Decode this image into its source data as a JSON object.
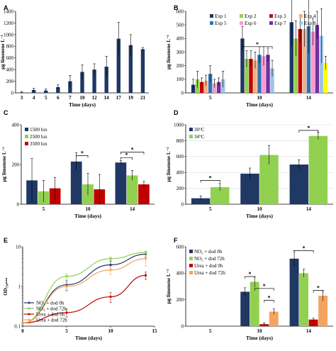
{
  "figure": {
    "background": "#ffffff",
    "axis_color": "#000000",
    "grid_color": "#d9d9d9"
  },
  "chart_data": [
    {
      "panel": "A",
      "type": "bar",
      "categories": [
        "3",
        "4",
        "5",
        "6",
        "7",
        "10",
        "12",
        "14",
        "17",
        "19",
        "21"
      ],
      "series": [
        {
          "color": "#1f3864",
          "values": [
            10,
            50,
            40,
            100,
            200,
            360,
            400,
            450,
            930,
            820,
            750
          ],
          "errors": [
            15,
            30,
            30,
            40,
            100,
            120,
            100,
            180,
            280,
            180,
            30
          ]
        }
      ],
      "xlabel": "Time (days)",
      "ylabel": "µg limonene L⁻¹",
      "ylim": [
        0,
        1400
      ],
      "yticks": [
        0,
        200,
        400,
        600,
        800,
        1000,
        1200,
        1400
      ],
      "ytick_labels": [
        "0",
        "200",
        "400",
        "600",
        "800",
        "1000",
        "1200",
        "1400"
      ],
      "grid": false,
      "bar_width": 0.18
    },
    {
      "panel": "B",
      "type": "bar",
      "categories": [
        "5",
        "10",
        "14"
      ],
      "series": [
        {
          "name": "Exp 1",
          "color": "#1f3864",
          "values": [
            60,
            400,
            520
          ],
          "errors": [
            40,
            90,
            180
          ]
        },
        {
          "name": "Exp 2",
          "color": "#92d050",
          "values": [
            100,
            250,
            400
          ],
          "errors": [
            60,
            60,
            130
          ]
        },
        {
          "name": "Exp 3",
          "color": "#c00000",
          "values": [
            80,
            250,
            470
          ],
          "errors": [
            30,
            60,
            100
          ]
        },
        {
          "name": "Exp 4",
          "color": "#f4b183",
          "values": [
            90,
            240,
            470
          ],
          "errors": [
            40,
            60,
            130
          ]
        },
        {
          "name": "Exp 5",
          "color": "#2e75b6",
          "values": [
            140,
            280,
            490
          ],
          "errors": [
            60,
            60,
            200
          ]
        },
        {
          "name": "Exp 6",
          "color": "#ff99cc",
          "values": [
            70,
            270,
            450
          ],
          "errors": [
            30,
            70,
            100
          ]
        },
        {
          "name": "Exp 7",
          "color": "#7030a0",
          "values": [
            80,
            280,
            500
          ],
          "errors": [
            30,
            50,
            100
          ]
        },
        {
          "name": "Exp 8",
          "color": "#9dc3e6",
          "values": [
            100,
            180,
            420
          ],
          "errors": [
            60,
            60,
            200
          ]
        }
      ],
      "extra_bar": {
        "color": "#ffff00",
        "values": [
          0,
          0,
          220
        ],
        "errors": [
          0,
          0,
          50
        ]
      },
      "significance": [
        {
          "from": "10",
          "level": 340,
          "label": "*"
        }
      ],
      "xlabel": "Time (days)",
      "ylabel": "µg limonene L⁻¹",
      "ylim": [
        0,
        600
      ],
      "yticks": [
        0,
        100,
        200,
        300,
        400,
        500,
        600
      ],
      "ytick_labels": [
        "0",
        "100",
        "200",
        "300",
        "400",
        "500",
        "600"
      ],
      "legend": "top",
      "grid": false
    },
    {
      "panel": "C",
      "type": "bar",
      "categories": [
        "5",
        "10",
        "14"
      ],
      "series": [
        {
          "name": "1500 lux",
          "color": "#1f3864",
          "values": [
            120,
            215,
            210
          ],
          "errors": [
            110,
            45,
            10
          ]
        },
        {
          "name": "2500 lux",
          "color": "#92d050",
          "values": [
            65,
            100,
            145
          ],
          "errors": [
            55,
            55,
            25
          ]
        },
        {
          "name": "3500 lux",
          "color": "#c00000",
          "values": [
            80,
            75,
            100
          ],
          "errors": [
            55,
            75,
            15
          ]
        }
      ],
      "significance": [
        {
          "group": "10",
          "pair": [
            0,
            1
          ],
          "level": 245,
          "label": "*"
        },
        {
          "group": "14",
          "pair": [
            0,
            1
          ],
          "level": 235,
          "label": "*"
        },
        {
          "group": "14",
          "pair": [
            0,
            2
          ],
          "level": 262,
          "label": "*"
        }
      ],
      "xlabel": "Time (days)",
      "ylabel": "µg limonene L⁻¹",
      "ylim": [
        0,
        400
      ],
      "yticks": [
        0,
        200,
        400
      ],
      "ytick_labels": [
        "0",
        "200",
        "400"
      ],
      "legend": "top-left",
      "grid": false
    },
    {
      "panel": "D",
      "type": "bar",
      "categories": [
        "5",
        "10",
        "14"
      ],
      "series": [
        {
          "name": "30°C",
          "color": "#1f3864",
          "values": [
            75,
            385,
            500
          ],
          "errors": [
            30,
            70,
            60
          ]
        },
        {
          "name": "34°C",
          "color": "#92d050",
          "values": [
            215,
            620,
            860
          ],
          "errors": [
            45,
            120,
            45
          ]
        }
      ],
      "significance": [
        {
          "group": "5",
          "pair": [
            0,
            1
          ],
          "level": 300,
          "label": "*"
        },
        {
          "group": "14",
          "pair": [
            0,
            1
          ],
          "level": 930,
          "label": "*"
        }
      ],
      "xlabel": "Time (days)",
      "ylabel": "µg limonene L⁻¹",
      "ylim": [
        0,
        1000
      ],
      "yticks": [
        0,
        200,
        400,
        600,
        800,
        1000
      ],
      "ytick_labels": [
        "0",
        "200",
        "400",
        "600",
        "800",
        "1000"
      ],
      "legend": "top-left",
      "grid": true
    },
    {
      "panel": "E",
      "type": "line",
      "scale_y": "log",
      "series": [
        {
          "name": "NO₃ + dod 0h",
          "color": "#1f3864",
          "marker": "circle",
          "x": [
            0,
            5,
            10,
            14
          ],
          "y": [
            0.12,
            1.1,
            3.5,
            6.5
          ],
          "errors": [
            0,
            0.3,
            0.8,
            1.0
          ]
        },
        {
          "name": "NO₃ + dod 72h",
          "color": "#92d050",
          "marker": "square",
          "x": [
            0,
            5,
            10,
            14
          ],
          "y": [
            0.12,
            1.8,
            5.0,
            7.2
          ],
          "errors": [
            0,
            0.3,
            0.5,
            0.6
          ]
        },
        {
          "name": "Urea + dod 0h",
          "color": "#c00000",
          "marker": "circle",
          "x": [
            0,
            5,
            10,
            14
          ],
          "y": [
            0.12,
            0.22,
            0.55,
            1.9
          ],
          "errors": [
            0,
            0.05,
            0.15,
            0.4
          ]
        },
        {
          "name": "Urea + dod 72h",
          "color": "#f4a460",
          "marker": "circle",
          "x": [
            0,
            5,
            10,
            14
          ],
          "y": [
            0.12,
            1.0,
            2.6,
            5.0
          ],
          "errors": [
            0,
            0.25,
            0.6,
            1.8
          ]
        }
      ],
      "xlabel": "Time (days)",
      "ylabel": "OD₇₅₀ₙₘ",
      "xlim": [
        0,
        15
      ],
      "xticks": [
        0,
        5,
        10,
        15
      ],
      "xtick_labels": [
        "0",
        "5",
        "10",
        "15"
      ],
      "ylim": [
        0.1,
        10
      ],
      "yticks": [
        0.1,
        1,
        10
      ],
      "ytick_labels": [
        "0.1",
        "1",
        "10"
      ],
      "legend": "bottom-left",
      "grid": false
    },
    {
      "panel": "F",
      "type": "bar",
      "categories": [
        "5",
        "10",
        "14"
      ],
      "series": [
        {
          "name": "NO₃ + dod 0h",
          "color": "#1f3864",
          "values": [
            0,
            260,
            510
          ],
          "errors": [
            0,
            30,
            60
          ]
        },
        {
          "name": "NO₃ + dod 72h",
          "color": "#92d050",
          "values": [
            0,
            335,
            400
          ],
          "errors": [
            0,
            40,
            30
          ]
        },
        {
          "name": "Urea + dod 0h",
          "color": "#c00000",
          "values": [
            0,
            15,
            50
          ],
          "errors": [
            0,
            10,
            10
          ]
        },
        {
          "name": "Urea + dod 72h",
          "color": "#f4a460",
          "values": [
            0,
            110,
            230
          ],
          "errors": [
            0,
            20,
            40
          ]
        }
      ],
      "significance": [
        {
          "group": "10",
          "pair": [
            0,
            1
          ],
          "level": 375,
          "label": "*"
        },
        {
          "group": "10",
          "pair": [
            1,
            3
          ],
          "level": 285,
          "label": "*"
        },
        {
          "group": "10",
          "pair": [
            2,
            3
          ],
          "level": 195,
          "label": "*"
        },
        {
          "group": "14",
          "pair": [
            0,
            2
          ],
          "level": 570,
          "label": "*"
        },
        {
          "group": "14",
          "pair": [
            2,
            3
          ],
          "level": 270,
          "label": "*"
        }
      ],
      "xlabel": "Time (days)",
      "ylabel": "µg limonene L⁻¹",
      "ylim": [
        0,
        600
      ],
      "yticks": [
        0,
        200,
        400,
        600
      ],
      "ytick_labels": [
        "0",
        "200",
        "400",
        "600"
      ],
      "legend": "top-left",
      "grid": false
    }
  ]
}
